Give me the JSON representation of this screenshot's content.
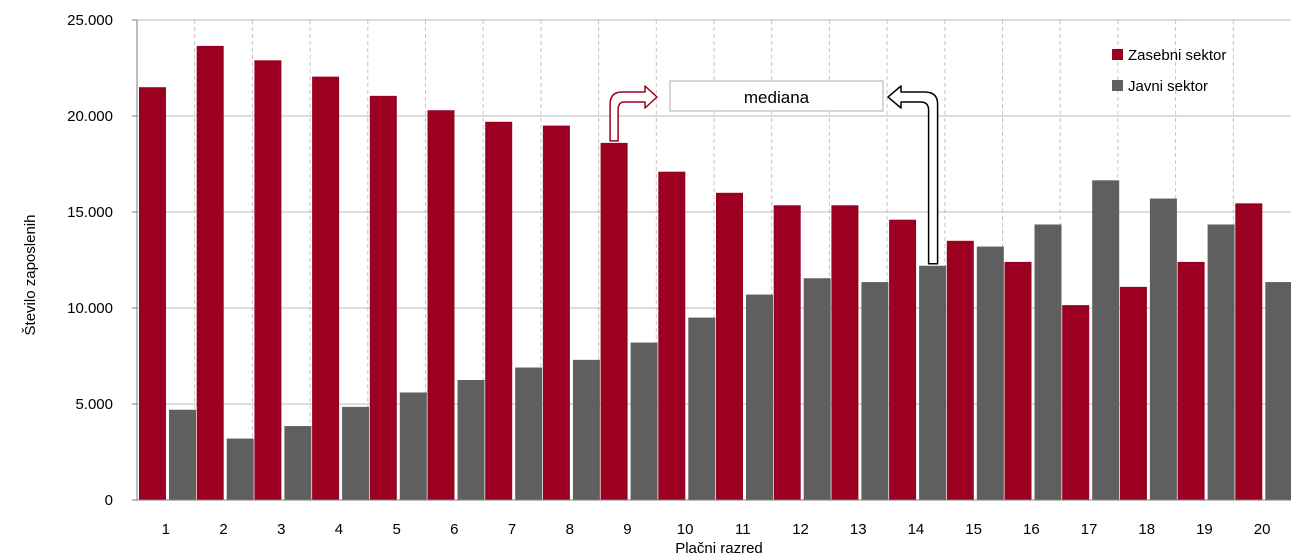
{
  "chart_data": {
    "type": "bar",
    "xlabel": "Plačni razred",
    "ylabel": "Število zaposlenih",
    "ylim": [
      0,
      25000
    ],
    "yticks": [
      0,
      5000,
      10000,
      15000,
      20000,
      25000
    ],
    "ytick_labels": [
      "0",
      "5.000",
      "10.000",
      "15.000",
      "20.000",
      "25.000"
    ],
    "categories": [
      "1",
      "2",
      "3",
      "4",
      "5",
      "6",
      "7",
      "8",
      "9",
      "10",
      "11",
      "12",
      "13",
      "14",
      "15",
      "16",
      "17",
      "18",
      "19",
      "20"
    ],
    "series": [
      {
        "name": "Zasebni sektor",
        "color": "#9b0020",
        "values": [
          21500,
          23650,
          22900,
          22050,
          21050,
          20300,
          19700,
          19500,
          18600,
          17100,
          16000,
          15350,
          15350,
          14600,
          13500,
          12400,
          10150,
          11100,
          12400,
          15450
        ]
      },
      {
        "name": "Javni sektor",
        "color": "#5f5f5f",
        "values": [
          4700,
          3200,
          3850,
          4850,
          5600,
          6250,
          6900,
          7300,
          8200,
          9500,
          10700,
          11550,
          11350,
          12200,
          13200,
          14350,
          16650,
          15700,
          14350,
          11350
        ]
      }
    ],
    "grid": "vertical dashed",
    "legend_position": "top-right",
    "annotations": [
      {
        "text": "mediana",
        "from_categories": [
          "9",
          "14"
        ]
      }
    ]
  }
}
